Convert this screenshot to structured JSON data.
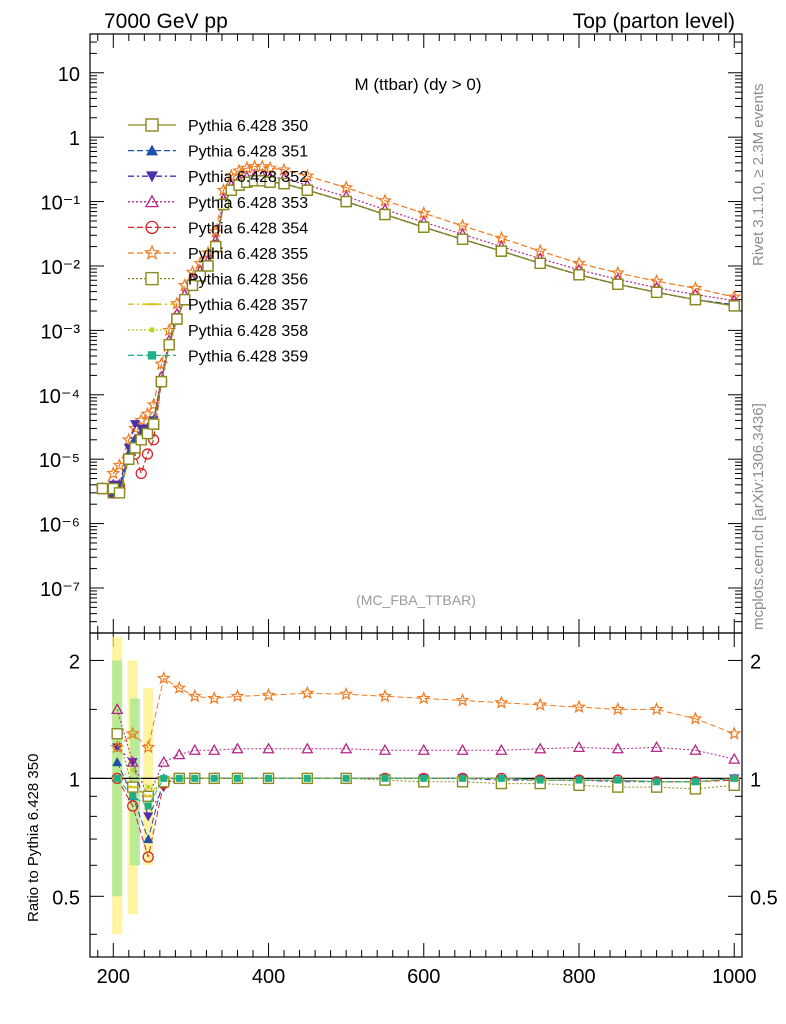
{
  "header": {
    "left": "7000 GeV pp",
    "right": "Top (parton level)"
  },
  "side": {
    "rivet": "Rivet 3.1.10, ≥ 2.3M events",
    "site": "mcplots.cern.ch [arXiv:1306.3436]"
  },
  "chart_data": [
    {
      "type": "line",
      "title": "M (ttbar) (dy > 0)",
      "annotation": "(MC_FBA_TTBAR)",
      "yscale": "log",
      "xlim": [
        170,
        1010
      ],
      "ylim": [
        2e-08,
        40
      ],
      "ytick_labels": [
        "10",
        "1",
        "10⁻¹",
        "10⁻²",
        "10⁻³",
        "10⁻⁴",
        "10⁻⁵",
        "10⁻⁶",
        "10⁻⁷"
      ],
      "legend_position": "top-left",
      "x": [
        186,
        200,
        208,
        220,
        228,
        236,
        244,
        252,
        262,
        272,
        282,
        292,
        302,
        312,
        322,
        332,
        342,
        352,
        362,
        372,
        382,
        392,
        402,
        420,
        450,
        500,
        550,
        600,
        650,
        700,
        750,
        800,
        850,
        900,
        950,
        1000
      ],
      "series": [
        {
          "name": "Pythia 6.428 350",
          "color": "#8a8a1f",
          "marker": "square-open",
          "dash": "solid",
          "values": [
            3.5e-06,
            3.5e-06,
            3e-06,
            1e-05,
            1.5e-05,
            2e-05,
            2.5e-05,
            3.5e-05,
            0.00016,
            0.0006,
            0.0015,
            0.003,
            0.005,
            0.007,
            0.01,
            0.02,
            0.09,
            0.15,
            0.18,
            0.2,
            0.21,
            0.21,
            0.2,
            0.19,
            0.15,
            0.1,
            0.063,
            0.04,
            0.026,
            0.017,
            0.011,
            0.0073,
            0.0052,
            0.0039,
            0.003,
            0.0024
          ]
        },
        {
          "name": "Pythia 6.428 351",
          "color": "#1f4fa8",
          "marker": "triangle-up",
          "dash": "dashed",
          "values": [
            3.5e-06,
            3e-06,
            3.5e-06,
            1.2e-05,
            2e-05,
            2.5e-05,
            3e-05,
            4e-05,
            0.00017,
            0.0006,
            0.0015,
            0.003,
            0.005,
            0.007,
            0.01,
            0.021,
            0.09,
            0.15,
            0.18,
            0.2,
            0.21,
            0.21,
            0.2,
            0.19,
            0.15,
            0.1,
            0.063,
            0.04,
            0.026,
            0.017,
            0.011,
            0.0073,
            0.0052,
            0.0039,
            0.003,
            0.0025
          ]
        },
        {
          "name": "Pythia 6.428 352",
          "color": "#4b2ea8",
          "marker": "triangle-down",
          "dash": "dashdot",
          "values": [
            3.5e-06,
            4e-06,
            4e-06,
            1.5e-05,
            3.5e-05,
            3e-05,
            3e-05,
            4e-05,
            0.00017,
            0.0006,
            0.0016,
            0.003,
            0.005,
            0.007,
            0.01,
            0.021,
            0.09,
            0.15,
            0.18,
            0.2,
            0.21,
            0.21,
            0.2,
            0.19,
            0.15,
            0.1,
            0.063,
            0.04,
            0.026,
            0.017,
            0.011,
            0.0073,
            0.0052,
            0.0039,
            0.003,
            0.0025
          ]
        },
        {
          "name": "Pythia 6.428 353",
          "color": "#b5258a",
          "marker": "triangle-up-open",
          "dash": "dotted",
          "values": [
            3.5e-06,
            4e-06,
            4e-06,
            1.2e-05,
            2e-05,
            2.5e-05,
            3e-05,
            4e-05,
            0.00019,
            0.0007,
            0.0018,
            0.0036,
            0.006,
            0.0084,
            0.012,
            0.025,
            0.11,
            0.18,
            0.22,
            0.24,
            0.25,
            0.25,
            0.24,
            0.23,
            0.18,
            0.12,
            0.075,
            0.048,
            0.031,
            0.02,
            0.013,
            0.0087,
            0.0062,
            0.0046,
            0.0036,
            0.0029
          ]
        },
        {
          "name": "Pythia 6.428 354",
          "color": "#d6262b",
          "marker": "circle-open",
          "dash": "dashed",
          "values": [
            3.5e-06,
            3e-06,
            3.5e-06,
            1e-05,
            1.2e-05,
            6e-06,
            1.2e-05,
            2e-05,
            0.00016,
            0.0006,
            0.0015,
            0.003,
            0.005,
            0.007,
            0.01,
            0.021,
            0.09,
            0.15,
            0.18,
            0.2,
            0.21,
            0.21,
            0.2,
            0.19,
            0.15,
            0.1,
            0.063,
            0.04,
            0.026,
            0.017,
            0.011,
            0.0073,
            0.0052,
            0.0039,
            0.003,
            0.0025
          ]
        },
        {
          "name": "Pythia 6.428 355",
          "color": "#f07a1f",
          "marker": "star-open",
          "dash": "dashed",
          "values": [
            3.5e-06,
            6e-06,
            8e-06,
            2e-05,
            3e-05,
            4e-05,
            5e-05,
            7e-05,
            0.0003,
            0.001,
            0.0026,
            0.005,
            0.008,
            0.011,
            0.016,
            0.034,
            0.15,
            0.25,
            0.3,
            0.33,
            0.35,
            0.35,
            0.33,
            0.31,
            0.25,
            0.165,
            0.103,
            0.066,
            0.042,
            0.027,
            0.017,
            0.011,
            0.0078,
            0.0058,
            0.0045,
            0.0033
          ]
        },
        {
          "name": "Pythia 6.428 356",
          "color": "#8a8a1f",
          "marker": "square-open",
          "dash": "dotted",
          "values": [
            3.5e-06,
            3e-06,
            3.5e-06,
            1e-05,
            1.5e-05,
            2e-05,
            2.5e-05,
            3.5e-05,
            0.00016,
            0.0006,
            0.0015,
            0.003,
            0.005,
            0.007,
            0.01,
            0.02,
            0.09,
            0.15,
            0.18,
            0.2,
            0.21,
            0.21,
            0.2,
            0.19,
            0.15,
            0.1,
            0.063,
            0.04,
            0.026,
            0.017,
            0.011,
            0.0073,
            0.0052,
            0.0039,
            0.003,
            0.0024
          ]
        },
        {
          "name": "Pythia 6.428 357",
          "color": "#d6c21a",
          "marker": "tick",
          "dash": "dashdot",
          "values": [
            3.5e-06,
            3e-06,
            3.5e-06,
            1e-05,
            1.5e-05,
            2e-05,
            2.5e-05,
            3.5e-05,
            0.00016,
            0.0006,
            0.0015,
            0.003,
            0.005,
            0.007,
            0.01,
            0.02,
            0.09,
            0.15,
            0.18,
            0.2,
            0.21,
            0.21,
            0.2,
            0.19,
            0.15,
            0.1,
            0.063,
            0.04,
            0.026,
            0.017,
            0.011,
            0.0073,
            0.0052,
            0.0039,
            0.003,
            0.0024
          ]
        },
        {
          "name": "Pythia 6.428 358",
          "color": "#b5d62a",
          "marker": "dot",
          "dash": "dotted",
          "values": [
            3.5e-06,
            3e-06,
            3.5e-06,
            1e-05,
            1.5e-05,
            2e-05,
            2.5e-05,
            3.5e-05,
            0.00016,
            0.0006,
            0.0015,
            0.003,
            0.005,
            0.007,
            0.01,
            0.02,
            0.09,
            0.15,
            0.18,
            0.2,
            0.21,
            0.21,
            0.2,
            0.19,
            0.15,
            0.1,
            0.063,
            0.04,
            0.026,
            0.017,
            0.011,
            0.0073,
            0.0052,
            0.0039,
            0.003,
            0.0024
          ]
        },
        {
          "name": "Pythia 6.428 359",
          "color": "#1fb08a",
          "marker": "square",
          "dash": "dashed",
          "values": [
            3.5e-06,
            3e-06,
            3.5e-06,
            1e-05,
            1.5e-05,
            2e-05,
            2.5e-05,
            3.5e-05,
            0.00016,
            0.0006,
            0.0015,
            0.003,
            0.005,
            0.007,
            0.01,
            0.02,
            0.09,
            0.15,
            0.18,
            0.2,
            0.21,
            0.21,
            0.2,
            0.19,
            0.15,
            0.1,
            0.063,
            0.04,
            0.026,
            0.017,
            0.011,
            0.0073,
            0.0052,
            0.0039,
            0.003,
            0.0024
          ]
        }
      ]
    },
    {
      "type": "line",
      "ylabel": "Ratio to Pythia 6.428 350",
      "yscale": "log",
      "xlim": [
        170,
        1010
      ],
      "ylim": [
        0.35,
        2.35
      ],
      "xticks": [
        200,
        400,
        600,
        800,
        1000
      ],
      "xtick_labels": [
        "200",
        "400",
        "600",
        "800",
        "1000"
      ],
      "yticks": [
        0.5,
        1,
        2
      ],
      "ytick_labels": [
        "0.5",
        "1",
        "2"
      ],
      "x": [
        205,
        225,
        245,
        265,
        285,
        305,
        330,
        360,
        400,
        450,
        500,
        550,
        600,
        650,
        700,
        750,
        800,
        850,
        900,
        950,
        1000
      ],
      "series": [
        {
          "name": "Pythia 6.428 351",
          "values": [
            1.1,
            0.9,
            0.7,
            1.0,
            1.0,
            1.0,
            1.0,
            1.0,
            1.0,
            1.0,
            1.0,
            1.0,
            1.0,
            1.0,
            1.0,
            0.99,
            0.99,
            0.99,
            0.98,
            0.98,
            1.0
          ]
        },
        {
          "name": "Pythia 6.428 352",
          "values": [
            1.2,
            1.1,
            0.8,
            0.95,
            1.0,
            1.0,
            1.0,
            1.0,
            1.0,
            1.0,
            1.0,
            1.0,
            1.0,
            1.0,
            0.99,
            0.99,
            0.99,
            0.98,
            0.98,
            0.98,
            1.0
          ]
        },
        {
          "name": "Pythia 6.428 353",
          "values": [
            1.5,
            1.1,
            0.9,
            1.1,
            1.15,
            1.18,
            1.18,
            1.19,
            1.19,
            1.19,
            1.19,
            1.18,
            1.18,
            1.18,
            1.18,
            1.19,
            1.2,
            1.19,
            1.2,
            1.18,
            1.12
          ]
        },
        {
          "name": "Pythia 6.428 354",
          "values": [
            1.0,
            0.85,
            0.63,
            0.97,
            1.0,
            1.0,
            1.0,
            1.0,
            1.0,
            1.0,
            1.0,
            1.0,
            1.0,
            1.0,
            1.0,
            0.99,
            0.99,
            0.99,
            0.98,
            0.98,
            0.99
          ]
        },
        {
          "name": "Pythia 6.428 355",
          "values": [
            1.2,
            1.3,
            1.2,
            1.8,
            1.7,
            1.62,
            1.6,
            1.62,
            1.63,
            1.65,
            1.64,
            1.62,
            1.6,
            1.58,
            1.56,
            1.54,
            1.52,
            1.5,
            1.5,
            1.42,
            1.3
          ]
        },
        {
          "name": "Pythia 6.428 356",
          "values": [
            1.3,
            0.95,
            0.9,
            0.98,
            1.0,
            1.0,
            1.0,
            1.0,
            1.0,
            1.0,
            1.0,
            0.99,
            0.98,
            0.98,
            0.97,
            0.97,
            0.96,
            0.95,
            0.95,
            0.94,
            0.96
          ]
        },
        {
          "name": "Pythia 6.428 357",
          "values": [
            1.0,
            0.95,
            0.9,
            1.0,
            1.0,
            1.0,
            1.0,
            1.0,
            1.0,
            1.0,
            1.0,
            1.0,
            1.0,
            1.0,
            1.0,
            0.99,
            0.99,
            0.99,
            0.98,
            0.98,
            1.0
          ]
        },
        {
          "name": "Pythia 6.428 358",
          "values": [
            1.0,
            1.05,
            0.95,
            1.0,
            1.0,
            1.0,
            1.0,
            1.0,
            1.0,
            1.0,
            1.0,
            1.0,
            1.0,
            1.0,
            1.0,
            0.99,
            0.99,
            0.99,
            0.98,
            0.98,
            1.0
          ]
        },
        {
          "name": "Pythia 6.428 359",
          "values": [
            1.0,
            0.9,
            0.85,
            1.0,
            1.0,
            1.0,
            1.0,
            1.0,
            1.0,
            1.0,
            1.0,
            1.0,
            1.0,
            1.0,
            1.0,
            0.99,
            0.99,
            0.99,
            0.98,
            0.98,
            1.0
          ]
        }
      ]
    }
  ]
}
